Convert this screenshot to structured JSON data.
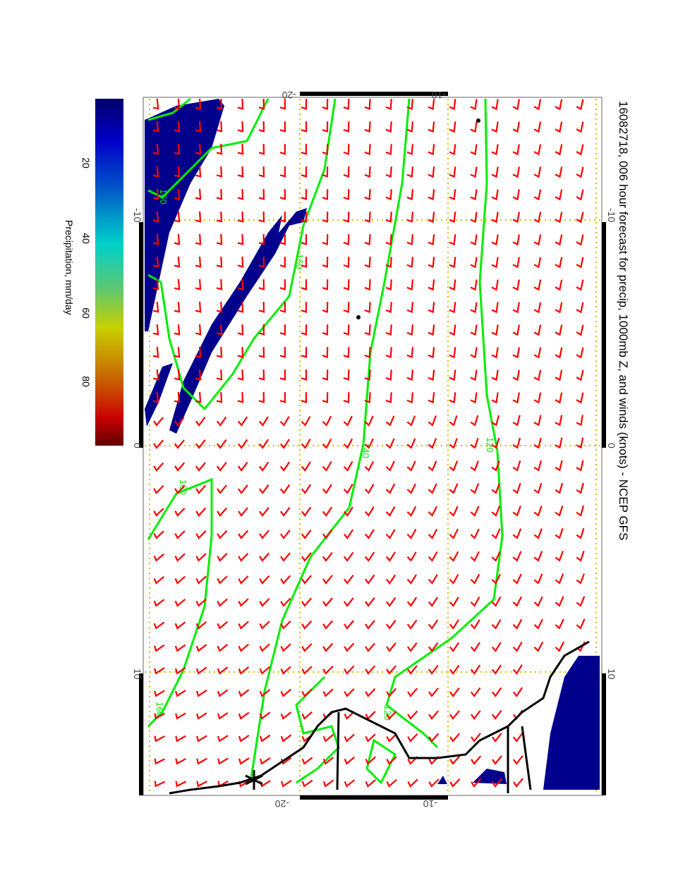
{
  "title": "16082718, 006 hour forecast for precip, 1000mb Z, and winds (knots) - NCEP GFS",
  "colorbar": {
    "label": "Precipitation, mm/day",
    "ticks": [
      "20",
      "40",
      "60",
      "80"
    ],
    "range_mm_day": [
      0,
      100
    ]
  },
  "axes": {
    "top_ticks": [
      "-20",
      "-10"
    ],
    "bottom_ticks": [
      "-20",
      "-10"
    ],
    "right_ticks": [
      "-10",
      "0",
      "10"
    ],
    "left_ticks": [
      "-10",
      "0",
      "10"
    ]
  },
  "contour_labels": [
    "120",
    "140",
    "160",
    "160",
    "120",
    "160",
    "160"
  ],
  "colors": {
    "wind_barbs": "#ff0000",
    "contours": "#00ee00",
    "precip": "#00008c",
    "coastline": "#000000",
    "grid": "#d4c000"
  }
}
